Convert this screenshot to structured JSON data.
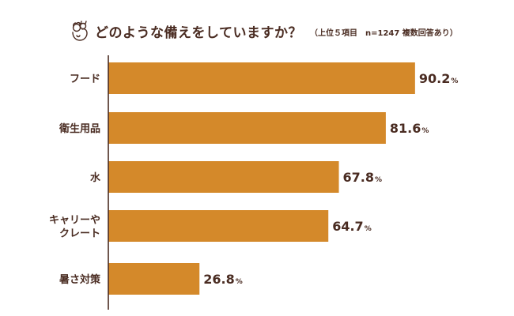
{
  "header": {
    "title": "どのような備えをしていますか？",
    "subtitle": "（上位５項目　n=1247 複数回答あり）",
    "logo_icon": "pet-mascot-icon"
  },
  "chart_data": {
    "type": "bar",
    "orientation": "horizontal",
    "categories": [
      [
        "フード"
      ],
      [
        "衛生用品"
      ],
      [
        "水"
      ],
      [
        "キャリーや",
        "クレート"
      ],
      [
        "暑さ対策"
      ]
    ],
    "values": [
      90.2,
      81.6,
      67.8,
      64.7,
      26.8
    ],
    "value_suffix": "%",
    "xlim": [
      0,
      100
    ],
    "bar_color": "#d4892a",
    "axis_color": "#4a2c22",
    "grid": false,
    "legend": "none"
  }
}
